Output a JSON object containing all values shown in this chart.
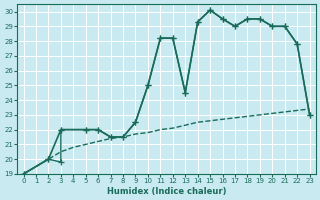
{
  "xlabel": "Humidex (Indice chaleur)",
  "xlim": [
    -0.5,
    23.5
  ],
  "ylim": [
    19,
    30.5
  ],
  "xticks": [
    0,
    1,
    2,
    3,
    4,
    5,
    6,
    7,
    8,
    9,
    10,
    11,
    12,
    13,
    14,
    15,
    16,
    17,
    18,
    19,
    20,
    21,
    22,
    23
  ],
  "yticks": [
    19,
    20,
    21,
    22,
    23,
    24,
    25,
    26,
    27,
    28,
    29,
    30
  ],
  "bg_color": "#c8eaf0",
  "line_color": "#1a6b5a",
  "grid_color": "#ffffff",
  "line1": {
    "x": [
      0,
      2,
      3,
      5,
      6,
      7,
      8,
      9,
      10,
      11,
      12,
      13,
      14,
      15,
      16,
      17,
      18,
      19,
      20,
      21,
      22,
      23
    ],
    "y": [
      19,
      20,
      22,
      22,
      22,
      21.5,
      21.5,
      22.5,
      25,
      28.2,
      28.2,
      24.5,
      29.3,
      30.1,
      29.5,
      29.0,
      29.5,
      29.5,
      29.0,
      29.0,
      27.8,
      23.0
    ],
    "marker": "+",
    "markersize": 4,
    "linewidth": 1.2
  },
  "line2": {
    "x": [
      0,
      2,
      3,
      3,
      5,
      6,
      7,
      8,
      9,
      10,
      11,
      12,
      13,
      14,
      15,
      16,
      17,
      18,
      19,
      20,
      21,
      22,
      23
    ],
    "y": [
      19,
      20,
      19.8,
      22,
      22,
      22,
      21.5,
      21.5,
      22.5,
      25,
      28.2,
      28.2,
      24.5,
      29.3,
      30.1,
      29.5,
      29.0,
      29.5,
      29.5,
      29.0,
      29.0,
      27.8,
      23.0
    ],
    "marker": "+",
    "markersize": 4,
    "linewidth": 1.0
  },
  "line3": {
    "x": [
      0,
      1,
      2,
      3,
      4,
      5,
      6,
      7,
      8,
      9,
      10,
      11,
      12,
      13,
      14,
      15,
      16,
      17,
      18,
      19,
      20,
      21,
      22,
      23
    ],
    "y": [
      19,
      19.5,
      20,
      20.5,
      20.8,
      21.0,
      21.2,
      21.4,
      21.5,
      21.7,
      21.8,
      22.0,
      22.1,
      22.3,
      22.5,
      22.6,
      22.7,
      22.8,
      22.9,
      23.0,
      23.1,
      23.2,
      23.3,
      23.4
    ],
    "linewidth": 1.0,
    "linestyle": "--"
  }
}
